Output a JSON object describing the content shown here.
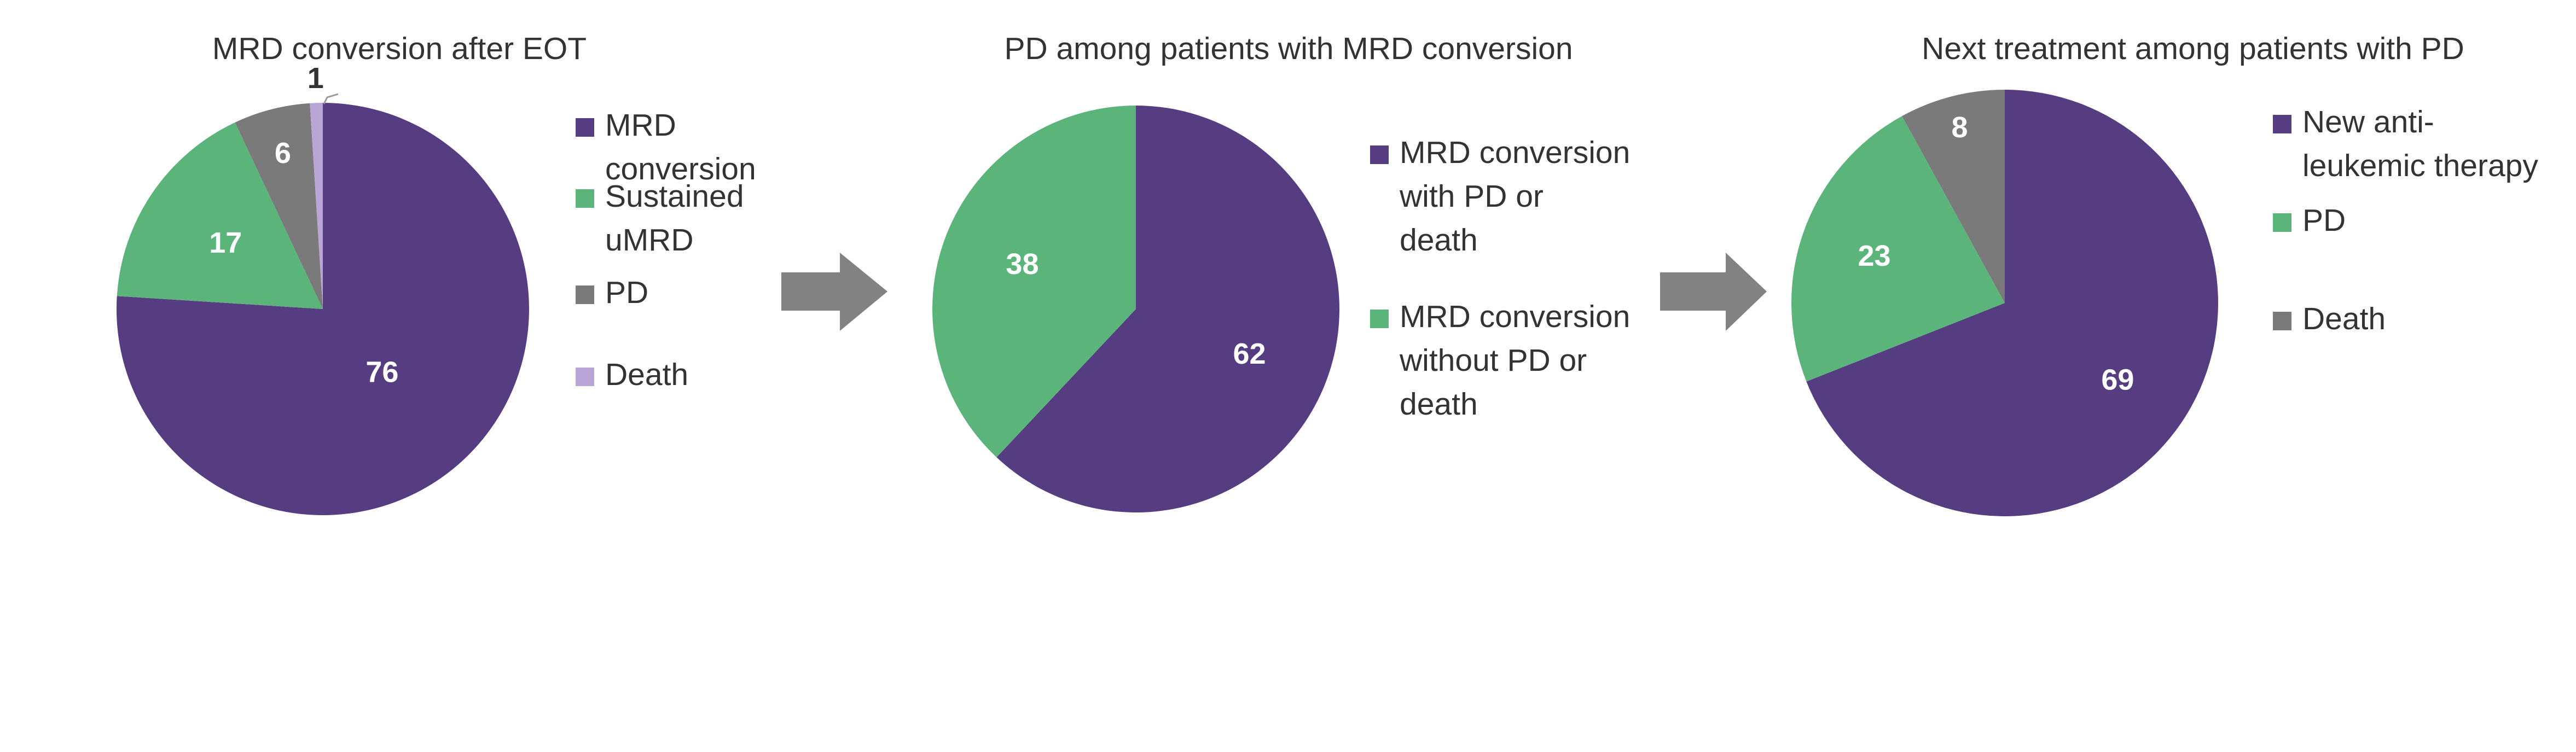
{
  "colors": {
    "purple": "#563D82",
    "green": "#5BB47A",
    "gray": "#7A7A7A",
    "lavender": "#B9A6D6",
    "arrow": "#828282"
  },
  "chart_data": [
    {
      "type": "pie",
      "title": "MRD conversion after EOT",
      "slices": [
        {
          "label": "MRD conversion",
          "value": 76,
          "color": "#563D82"
        },
        {
          "label": "Sustained uMRD",
          "value": 17,
          "color": "#5BB47A"
        },
        {
          "label": "PD",
          "value": 6,
          "color": "#7A7A7A"
        },
        {
          "label": "Death",
          "value": 1,
          "color": "#B9A6D6"
        }
      ],
      "legend": [
        "MRD\nconversion",
        "Sustained\nuMRD",
        "PD",
        "Death"
      ],
      "legend_position": "right"
    },
    {
      "type": "pie",
      "title": "PD among patients with MRD conversion",
      "slices": [
        {
          "label": "MRD conversion with PD or death",
          "value": 62,
          "color": "#563D82"
        },
        {
          "label": "MRD conversion without PD or death",
          "value": 38,
          "color": "#5BB47A"
        }
      ],
      "legend": [
        "MRD conversion\nwith PD or\ndeath",
        "MRD conversion\nwithout PD or\ndeath"
      ],
      "legend_position": "right"
    },
    {
      "type": "pie",
      "title": "Next treatment among patients with PD",
      "slices": [
        {
          "label": "New anti-leukemic therapy",
          "value": 69,
          "color": "#563D82"
        },
        {
          "label": "PD",
          "value": 23,
          "color": "#5BB47A"
        },
        {
          "label": "Death",
          "value": 8,
          "color": "#7A7A7A"
        }
      ],
      "legend": [
        "New anti-\nleukemic therapy",
        "PD",
        "Death"
      ],
      "legend_position": "right"
    }
  ]
}
